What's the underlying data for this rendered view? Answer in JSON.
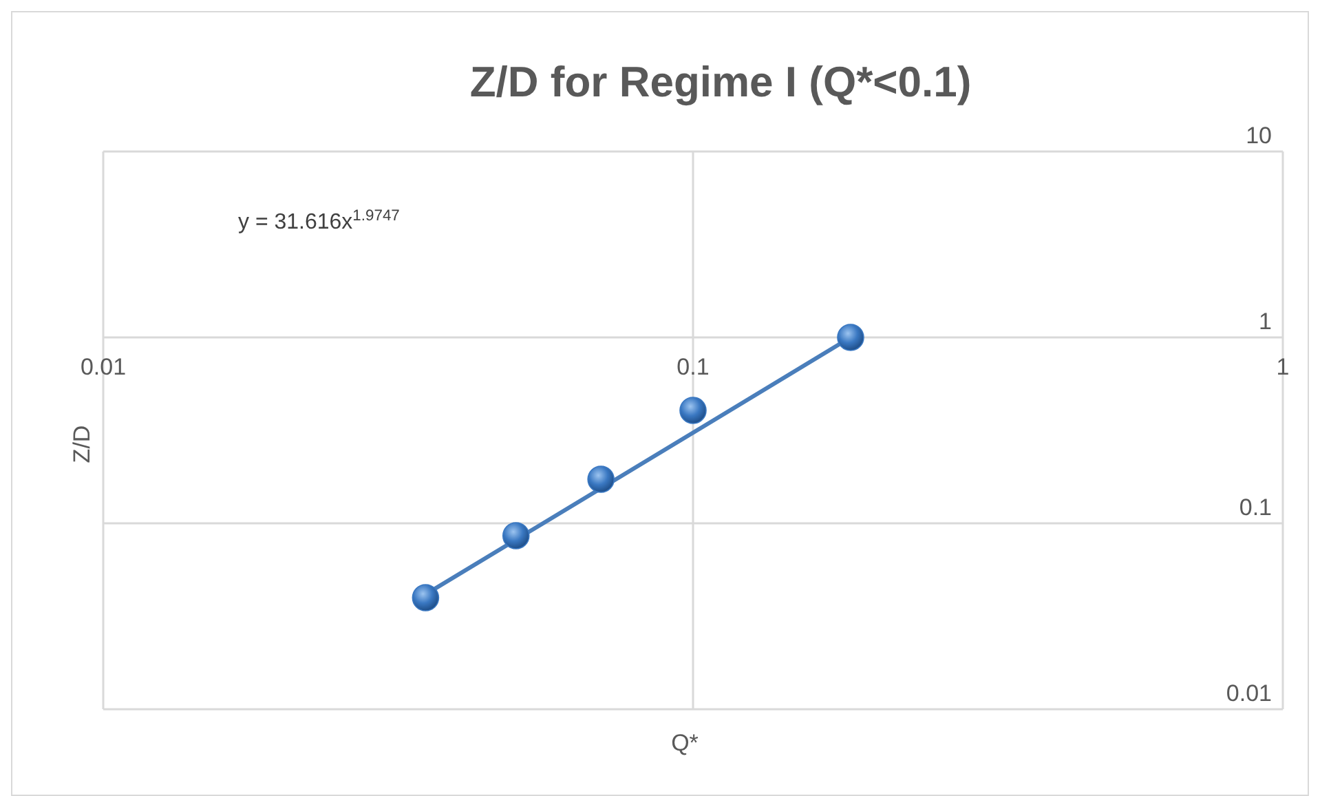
{
  "chart_data": {
    "type": "scatter",
    "title": "Z/D for Regime I (Q*<0.1)",
    "xlabel": "Q*",
    "ylabel": "Z/D",
    "log": "xy",
    "grid": true,
    "xlim": [
      0.01,
      1
    ],
    "xticks": [
      0.01,
      0.1,
      1
    ],
    "ylim": [
      0.01,
      10
    ],
    "yticks": [
      0.01,
      0.1,
      1,
      10
    ],
    "annotations": [
      "y = 31.616x$^{1.9747}$"
    ],
    "series": [
      {
        "color": "#3a78c2",
        "marker": "circle",
        "x": [
          0.0352,
          0.0501,
          0.0698,
          0.1,
          0.185
        ],
        "values": [
          0.0398,
          0.0858,
          0.1726,
          0.405,
          1.0
        ]
      },
      {
        "type": "line",
        "color": "#4a7ebb",
        "x": [
          0.0352,
          0.185
        ],
        "values": [
          0.0415,
          1.0
        ]
      }
    ]
  }
}
